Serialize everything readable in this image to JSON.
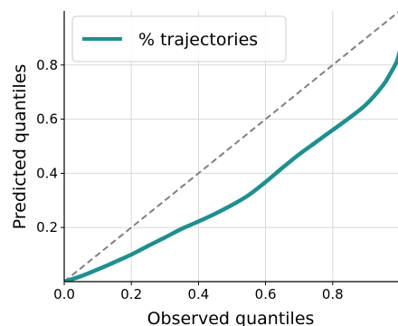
{
  "chart_data": {
    "type": "line",
    "title": "",
    "xlabel": "Observed quantiles",
    "ylabel": "Predicted quantiles",
    "xlim": [
      0,
      1
    ],
    "ylim": [
      0,
      1
    ],
    "x_ticks": [
      "0.0",
      "0.2",
      "0.4",
      "0.6",
      "0.8"
    ],
    "y_ticks": [
      "0.2",
      "0.4",
      "0.6",
      "0.8"
    ],
    "grid": true,
    "legend_position": "top-left",
    "series": [
      {
        "name": "% trajectories",
        "color": "#1f8f8f",
        "x": [
          0.0,
          0.05,
          0.1,
          0.15,
          0.2,
          0.25,
          0.3,
          0.35,
          0.4,
          0.45,
          0.5,
          0.55,
          0.6,
          0.65,
          0.7,
          0.75,
          0.8,
          0.85,
          0.9,
          0.95,
          0.97,
          0.99,
          1.0
        ],
        "values": [
          0.0,
          0.02,
          0.045,
          0.072,
          0.1,
          0.132,
          0.163,
          0.195,
          0.222,
          0.251,
          0.283,
          0.32,
          0.368,
          0.42,
          0.47,
          0.515,
          0.56,
          0.605,
          0.655,
          0.725,
          0.765,
          0.81,
          0.85
        ]
      }
    ],
    "reference_line": {
      "x": [
        0,
        1
      ],
      "values": [
        0,
        1
      ],
      "color": "#808080",
      "style": "dashed"
    }
  }
}
